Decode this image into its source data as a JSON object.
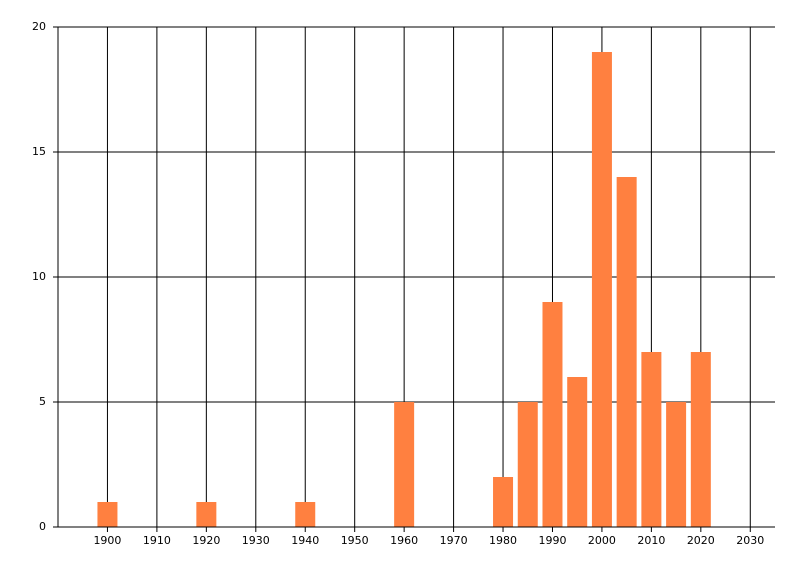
{
  "chart_data": {
    "type": "bar",
    "x": [
      1900,
      1920,
      1940,
      1960,
      1980,
      1985,
      1990,
      1995,
      2000,
      2005,
      2010,
      2015,
      2020
    ],
    "values": [
      1,
      1,
      1,
      5,
      2,
      5,
      9,
      6,
      19,
      14,
      7,
      5,
      7
    ],
    "color": "#ff8040",
    "xlim": [
      1890,
      2035
    ],
    "xticks": [
      1900,
      1910,
      1920,
      1930,
      1940,
      1950,
      1960,
      1970,
      1980,
      1990,
      2000,
      2010,
      2020,
      2030
    ],
    "ylim": [
      0,
      20
    ],
    "yticks": [
      0,
      5,
      10,
      15,
      20
    ],
    "grid": true
  }
}
